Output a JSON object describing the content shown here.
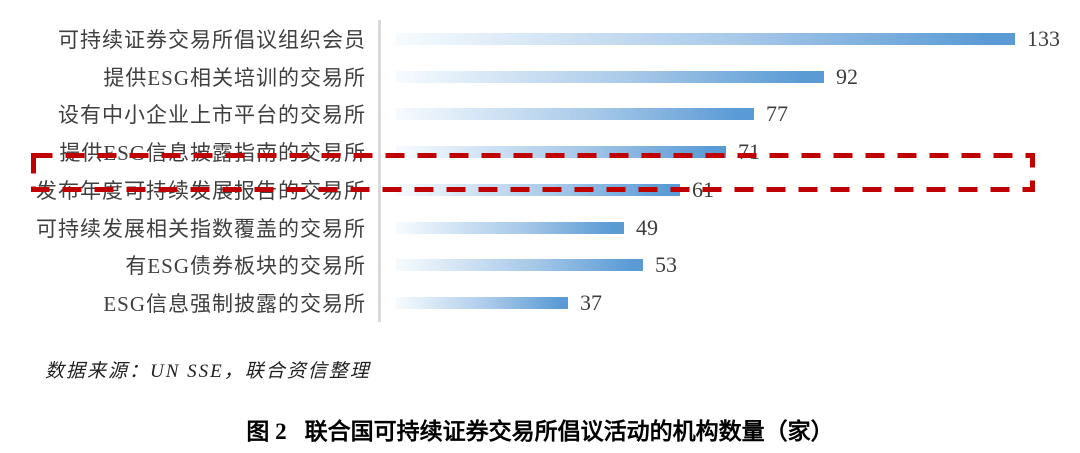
{
  "chart_data": {
    "type": "bar",
    "orientation": "horizontal",
    "categories": [
      "可持续证券交易所倡议组织会员",
      "提供ESG相关培训的交易所",
      "设有中小企业上市平台的交易所",
      "提供ESG信息披露指南的交易所",
      "发布年度可持续发展报告的交易所",
      "可持续发展相关指数覆盖的交易所",
      "有ESG债券板块的交易所",
      "ESG信息强制披露的交易所"
    ],
    "values": [
      133,
      92,
      77,
      71,
      61,
      49,
      53,
      37
    ],
    "xlim": [
      0,
      140
    ],
    "grid": false,
    "legend": "none",
    "data_labels": "outside-end",
    "highlighted_index": 3,
    "highlighted_category": "提供ESG信息披露指南的交易所",
    "title": "图 2 联合国可持续证券交易所倡议活动的机构数量（家）",
    "xlabel": "",
    "ylabel": "",
    "colors": {
      "bar_gradient_start": "#f7fbfe",
      "bar_gradient_mid": "#a8c9e9",
      "bar_gradient_end": "#5b9bd5",
      "axis_line": "#d9d9d9",
      "category_text": "#3f3f3f",
      "value_text": "#3d3d3d",
      "highlight_border": "#c00000"
    }
  },
  "source_note": "数据来源：UN SSE，联合资信整理",
  "caption": {
    "prefix": "图 2",
    "text": "联合国可持续证券交易所倡议活动的机构数量（家）"
  }
}
